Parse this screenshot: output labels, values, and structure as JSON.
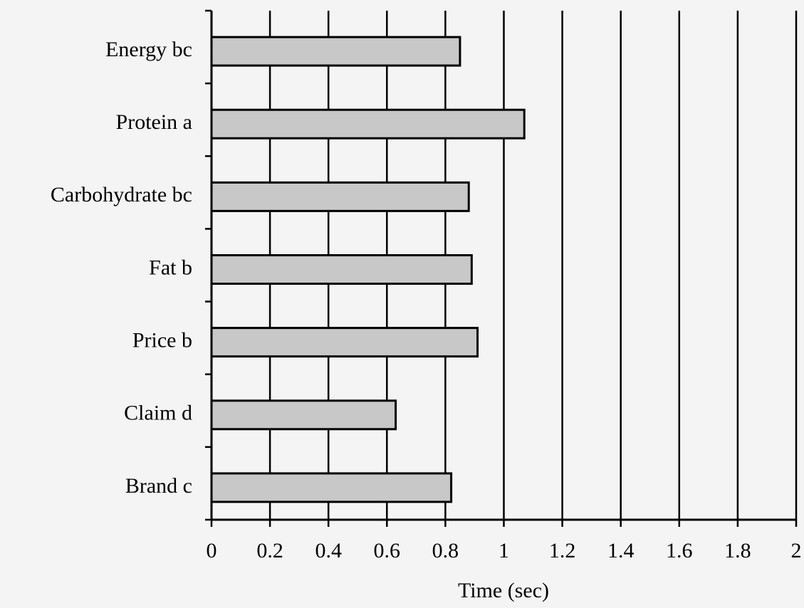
{
  "chart_data": {
    "type": "bar",
    "orientation": "horizontal",
    "x_label": "Time (sec)",
    "categories": [
      "Energy bc",
      "Protein a",
      "Carbohydrate bc",
      "Fat b",
      "Price b",
      "Claim d",
      "Brand c"
    ],
    "values": [
      0.85,
      1.07,
      0.88,
      0.89,
      0.91,
      0.63,
      0.82
    ],
    "color": "#c8c8c8",
    "xlim": [
      0,
      2
    ],
    "xticks": [
      0,
      0.2,
      0.4,
      0.6,
      0.8,
      1,
      1.2,
      1.4,
      1.6,
      1.8,
      2
    ],
    "grid": true
  }
}
